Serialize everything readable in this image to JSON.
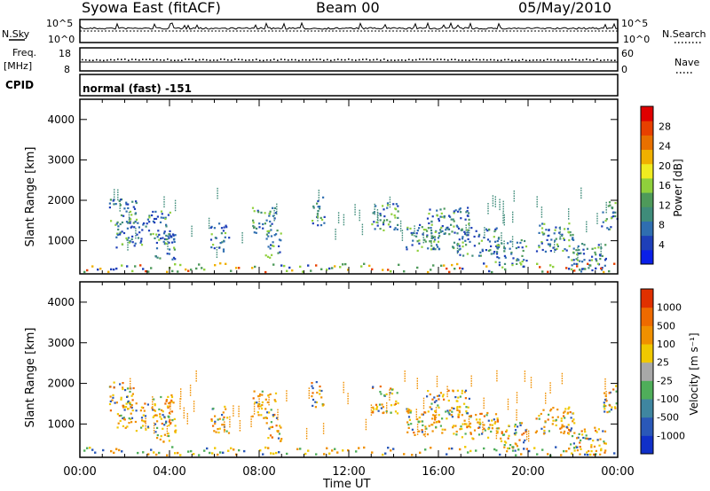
{
  "header": {
    "station": "Syowa East (fitACF)",
    "beam": "Beam 00",
    "date": "05/May/2010"
  },
  "strip_panels": {
    "nsky_label": "N.Sky",
    "nsky_ticks": [
      "10^5",
      "10^0"
    ],
    "nsearch_label": "N.Search",
    "nsearch_ticks": [
      "10^5",
      "10^0"
    ],
    "freq_label": "Freq.",
    "freq_unit": "[MHz]",
    "freq_ticks": [
      "18",
      "8"
    ],
    "nave_label": "Nave",
    "nave_ticks": [
      "60",
      "0"
    ],
    "cpid_label": "CPID",
    "cpid_text": "normal (fast) -151"
  },
  "chart_data": [
    {
      "type": "heatmap",
      "name": "power",
      "ylabel": "Slant Range [km]",
      "xlabel": "Time UT",
      "xlim": [
        "00:00",
        "24:00"
      ],
      "ylim": [
        180,
        4500
      ],
      "x_ticks": [
        "00:00",
        "04:00",
        "08:00",
        "12:00",
        "16:00",
        "20:00",
        "00:00"
      ],
      "y_ticks": [
        "1000",
        "2000",
        "3000",
        "4000"
      ],
      "colorbar": {
        "label": "Power [dB]",
        "ticks": [
          "28",
          "24",
          "20",
          "16",
          "12",
          "8",
          "4"
        ],
        "colors": [
          "#0a1fe8",
          "#1e3fb8",
          "#2f6eb0",
          "#3f8c7a",
          "#4e9a5a",
          "#8fd03c",
          "#f0ec20",
          "#f0b000",
          "#e87000",
          "#e84000",
          "#e00000"
        ]
      }
    },
    {
      "type": "heatmap",
      "name": "velocity",
      "ylabel": "Slant Range [km]",
      "xlabel": "Time UT",
      "xlim": [
        "00:00",
        "24:00"
      ],
      "ylim": [
        180,
        4500
      ],
      "x_ticks": [
        "00:00",
        "04:00",
        "08:00",
        "12:00",
        "16:00",
        "20:00",
        "00:00"
      ],
      "y_ticks": [
        "1000",
        "2000",
        "3000",
        "4000"
      ],
      "colorbar": {
        "label": "Velocity [m s⁻¹]",
        "ticks": [
          "1000",
          "500",
          "100",
          "25",
          "-25",
          "-100",
          "-500",
          "-1000"
        ],
        "colors": [
          "#1030c8",
          "#2a58b8",
          "#3f86a0",
          "#4fae5a",
          "#a8a8a8",
          "#f0c800",
          "#f09000",
          "#ee6a00",
          "#e03000"
        ]
      }
    }
  ]
}
